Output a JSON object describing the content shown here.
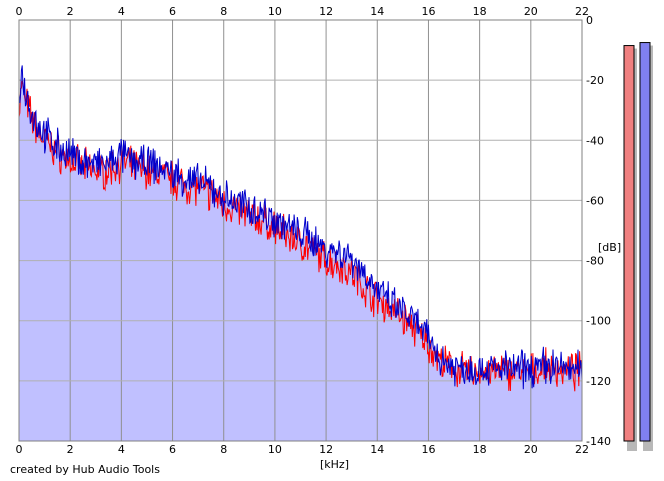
{
  "footer": {
    "credit": "created by Hub Audio Tools"
  },
  "chart_data": {
    "type": "area",
    "xlabel": "[kHz]",
    "ylabel": "[dB]",
    "xlim": [
      0,
      22
    ],
    "ylim": [
      -140,
      0
    ],
    "x_ticks": [
      0,
      2,
      4,
      6,
      8,
      10,
      12,
      14,
      16,
      18,
      20,
      22
    ],
    "x_tick_labels": [
      "0",
      "2",
      "4",
      "6",
      "8",
      "10",
      "12",
      "14",
      "16",
      "18",
      "20",
      "22"
    ],
    "y_ticks": [
      0,
      -20,
      -40,
      -60,
      -80,
      -100,
      -120,
      -140
    ],
    "y_tick_labels": [
      "0",
      "-20",
      "-40",
      "-60",
      "-80",
      "-100",
      "-120",
      "-140"
    ],
    "grid": true,
    "fill_color": "#c0c0ff",
    "series": [
      {
        "color": "#ff0000",
        "x": [
          0.0,
          0.1,
          0.3,
          0.6,
          1,
          1.5,
          2,
          2.5,
          3,
          3.5,
          4,
          4.5,
          5,
          5.5,
          6,
          6.5,
          7,
          7.5,
          8,
          8.5,
          9,
          9.5,
          10,
          10.5,
          11,
          11.5,
          12,
          12.5,
          13,
          13.5,
          14,
          14.5,
          15,
          15.5,
          16,
          16.5,
          17,
          17.5,
          18,
          18.5,
          19,
          19.5,
          20,
          20.5,
          21,
          21.5,
          22
        ],
        "values": [
          -30,
          -22,
          -28,
          -35,
          -40,
          -44,
          -47,
          -49,
          -50,
          -50,
          -47,
          -49,
          -50,
          -51,
          -53,
          -55,
          -56,
          -58,
          -61,
          -63,
          -65,
          -67,
          -69,
          -72,
          -74,
          -77,
          -80,
          -81,
          -84,
          -89,
          -93,
          -96,
          -99,
          -103,
          -108,
          -114,
          -116,
          -117,
          -117,
          -117,
          -117,
          -117,
          -117,
          -116,
          -116,
          -117,
          -117
        ]
      },
      {
        "color": "#0000cc",
        "x": [
          0.0,
          0.1,
          0.3,
          0.6,
          1,
          1.5,
          2,
          2.5,
          3,
          3.5,
          4,
          4.5,
          5,
          5.5,
          6,
          6.5,
          7,
          7.5,
          8,
          8.5,
          9,
          9.5,
          10,
          10.5,
          11,
          11.5,
          12,
          12.5,
          13,
          13.5,
          14,
          14.5,
          15,
          15.5,
          16,
          16.5,
          17,
          17.5,
          18,
          18.5,
          19,
          19.5,
          20,
          20.5,
          21,
          21.5,
          22
        ],
        "values": [
          -25,
          -17,
          -25,
          -33,
          -38,
          -42,
          -45,
          -47,
          -48,
          -48,
          -45,
          -47,
          -48,
          -49,
          -51,
          -53,
          -54,
          -56,
          -59,
          -61,
          -62,
          -64,
          -66,
          -69,
          -71,
          -73,
          -76,
          -77,
          -79,
          -84,
          -90,
          -94,
          -97,
          -101,
          -106,
          -113,
          -115,
          -116,
          -116,
          -116,
          -116,
          -116,
          -116,
          -115,
          -115,
          -116,
          -116
        ]
      }
    ],
    "level_meters": [
      {
        "color": "#f08080",
        "value": -8.5
      },
      {
        "color": "#8080f0",
        "value": -7.5
      }
    ]
  }
}
